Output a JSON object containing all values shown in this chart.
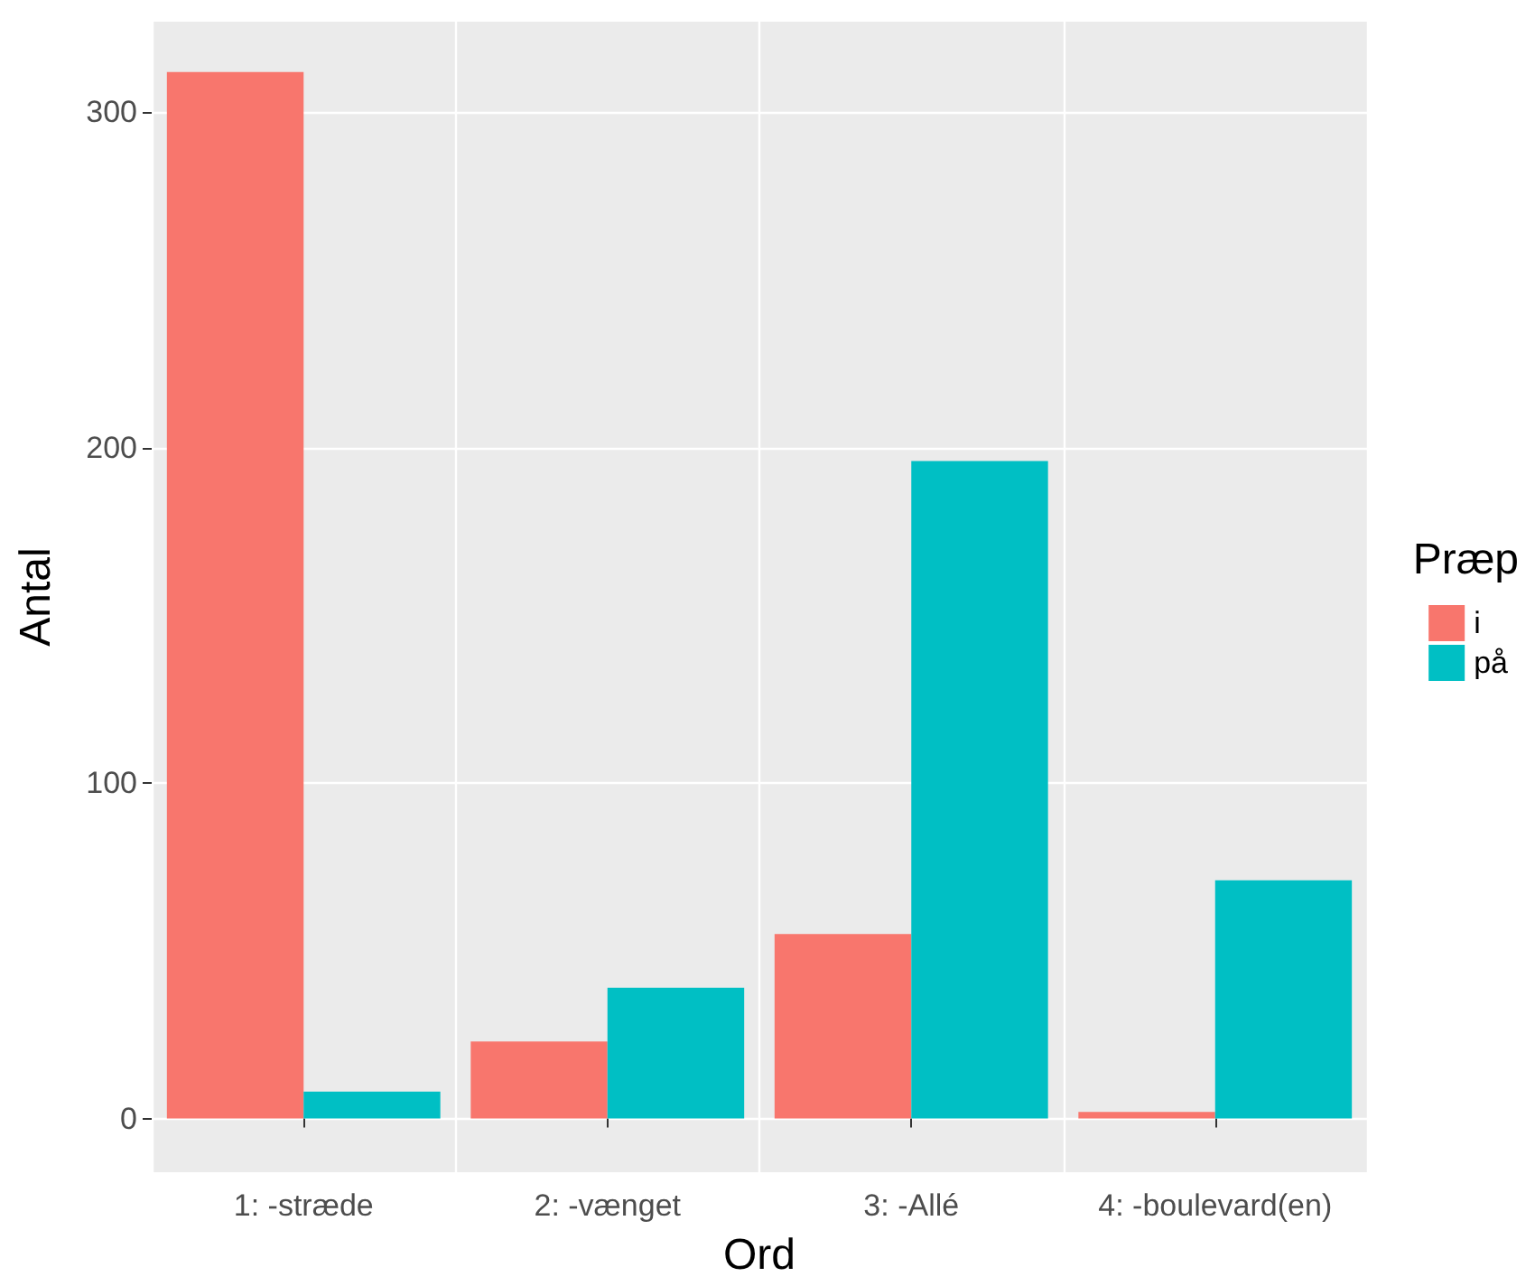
{
  "chart_data": {
    "type": "bar",
    "xlabel": "Ord",
    "ylabel": "Antal",
    "legend_title": "Præp",
    "categories": [
      "1: -stræde",
      "2: -vænget",
      "3: -Allé",
      "4: -boulevard(en)"
    ],
    "series": [
      {
        "name": "i",
        "color": "#f8766d",
        "values": [
          312,
          23,
          55,
          2
        ]
      },
      {
        "name": "på",
        "color": "#00bfc4",
        "values": [
          8,
          39,
          196,
          71
        ]
      }
    ],
    "ylim": [
      -16,
      327
    ],
    "yticks": [
      0,
      100,
      200,
      300
    ],
    "grid": true,
    "legend": "right"
  }
}
